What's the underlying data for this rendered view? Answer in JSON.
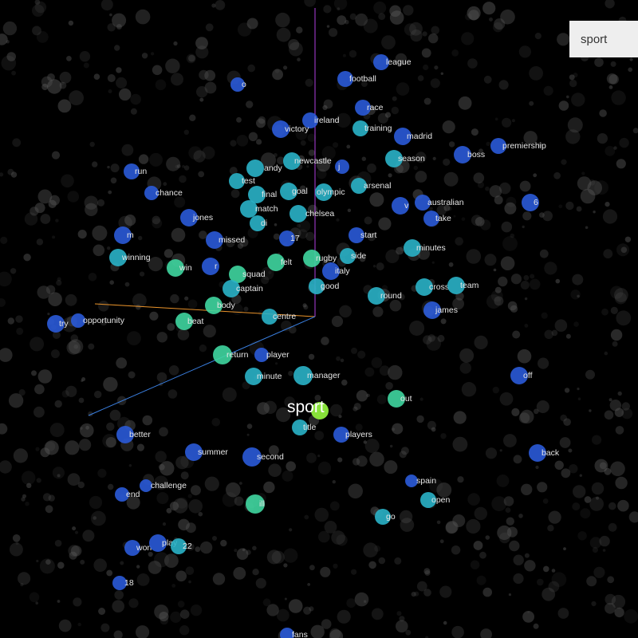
{
  "search": {
    "value": "sport",
    "placeholder": ""
  },
  "query_word": "sport",
  "colors": {
    "background": "#000000",
    "axis_x": "#e8922a",
    "axis_y": "#b040e0",
    "axis_z": "#3a7fe0",
    "query_point": "#88e23a",
    "near_point": "#3fd6a0",
    "mid_point": "#2ab2c8",
    "far_point": "#2a5ad8",
    "background_point": "#5a5a5a",
    "label": "#e6e6e6"
  },
  "neighbors": [
    "league",
    "o",
    "football",
    "race",
    "ireland",
    "victory",
    "training",
    "madrid",
    "premiership",
    "boss",
    "run",
    "andy",
    "newcastle",
    "j",
    "season",
    "test",
    "arsenal",
    "chance",
    "final",
    "goal",
    "olympic",
    "australian",
    "6",
    "match",
    "v",
    "jones",
    "chelsea",
    "take",
    "di",
    "m",
    "missed",
    "17",
    "start",
    "minutes",
    "winning",
    "side",
    "felt",
    "rugby",
    "win",
    "r",
    "squad",
    "italy",
    "captain",
    "good",
    "cross",
    "team",
    "round",
    "body",
    "james",
    "centre",
    "try",
    "opportunity",
    "beat",
    "return",
    "player",
    "minute",
    "manager",
    "off",
    "out",
    "title",
    "better",
    "players",
    "summer",
    "second",
    "back",
    "spain",
    "challenge",
    "end",
    "ill",
    "open",
    "go",
    "won",
    "play",
    "22",
    "18",
    "fans"
  ]
}
